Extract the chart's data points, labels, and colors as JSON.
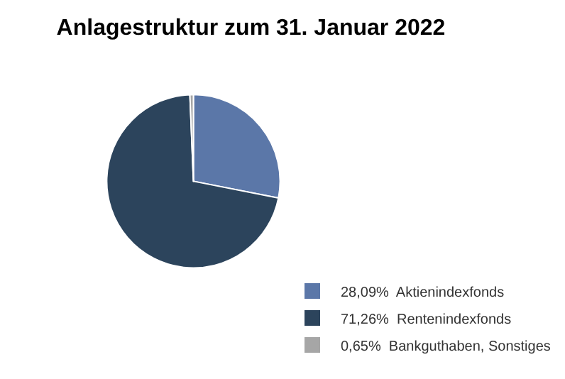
{
  "chart_data": {
    "type": "pie",
    "title": "Anlagestruktur zum 31. Januar 2022",
    "categories": [
      "Aktienindexfonds",
      "Rentenindexfonds",
      "Bankguthaben, Sonstiges"
    ],
    "values": [
      28.09,
      71.26,
      0.65
    ],
    "value_labels": [
      "28,09%",
      "71,26%",
      "0,65%"
    ],
    "colors": [
      "#5b77a8",
      "#2c445c",
      "#a6a6a6"
    ],
    "legend": "bottom right"
  }
}
